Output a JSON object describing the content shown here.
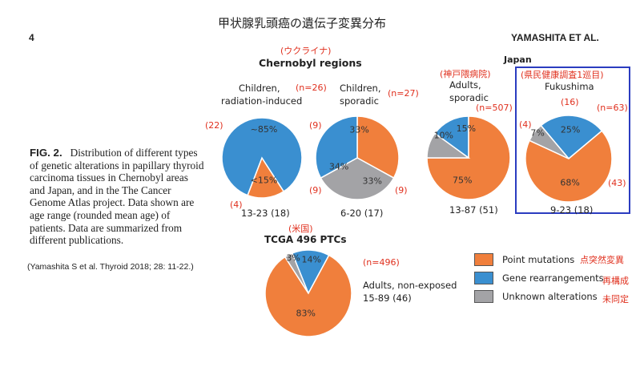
{
  "header": {
    "jp_title": "甲状腺乳頭癌の遺伝子変異分布",
    "page_number": "4",
    "authors": "YAMASHITA ET AL."
  },
  "caption": {
    "fig_label": "FIG. 2.",
    "text": "Distribution of different types of genetic alterations in papillary thyroid carcinoma tissues in Chernobyl areas and Japan, and in the The Cancer Genome Atlas project. Data shown are age range (rounded mean age) of patients. Data are summarized from different publications."
  },
  "citation": "(Yamashita S et al. Thyroid 2018; 28: 11-22.)",
  "groups": {
    "chernobyl": {
      "jp": "(ウクライナ)",
      "title": "Chernobyl regions"
    },
    "japan": {
      "title": "Japan"
    },
    "tcga": {
      "jp": "(米国)",
      "title": "TCGA 496 PTCs"
    }
  },
  "colors": {
    "point": "#f07f3c",
    "rearr": "#3a8fd0",
    "unknown": "#a3a3a6",
    "annotation": "#e0301e",
    "box": "#2b3cc0"
  },
  "chart_data": [
    {
      "type": "pie",
      "id": "radiation",
      "title": "Children, radiation-induced",
      "title_lines": [
        "Children,",
        "radiation-induced"
      ],
      "n_label": "(n=26)",
      "age": "13-23 (18)",
      "slices": [
        {
          "category": "Gene rearrangements",
          "value": 85,
          "label": "~85%",
          "count": "(22)"
        },
        {
          "category": "Point mutations",
          "value": 15,
          "label": "<15%",
          "count": "(4)"
        }
      ]
    },
    {
      "type": "pie",
      "id": "sporadic",
      "title": "Children, sporadic",
      "title_lines": [
        "Children,",
        "sporadic"
      ],
      "n_label": "(n=27)",
      "age": "6-20 (17)",
      "slices": [
        {
          "category": "Gene rearrangements",
          "value": 33,
          "label": "33%",
          "count": "(9)"
        },
        {
          "category": "Point mutations",
          "value": 33,
          "label": "33%",
          "count": "(9)"
        },
        {
          "category": "Unknown alterations",
          "value": 34,
          "label": "34%",
          "count": "(9)"
        }
      ]
    },
    {
      "type": "pie",
      "id": "adults_sporadic",
      "jp": "(神戸隈病院)",
      "title": "Adults, sporadic",
      "title_lines": [
        "Adults,",
        "sporadic"
      ],
      "n_label": "(n=507)",
      "age": "13-87 (51)",
      "slices": [
        {
          "category": "Gene rearrangements",
          "value": 15,
          "label": "15%"
        },
        {
          "category": "Point mutations",
          "value": 75,
          "label": "75%"
        },
        {
          "category": "Unknown alterations",
          "value": 10,
          "label": "10%"
        }
      ]
    },
    {
      "type": "pie",
      "id": "fukushima",
      "jp": "(県民健康調査1巡目)",
      "title": "Fukushima",
      "title_lines": [
        "Fukushima"
      ],
      "n_label": "(n=63)",
      "age": "9-23 (18)",
      "slices": [
        {
          "category": "Gene rearrangements",
          "value": 25,
          "label": "25%",
          "count": "(16)"
        },
        {
          "category": "Point mutations",
          "value": 68,
          "label": "68%",
          "count": "(43)"
        },
        {
          "category": "Unknown alterations",
          "value": 7,
          "label": "7%",
          "count": "(4)"
        }
      ]
    },
    {
      "type": "pie",
      "id": "tcga",
      "title": "TCGA 496 PTCs",
      "title_lines": [
        "Adults, non-exposed"
      ],
      "n_label": "(n=496)",
      "age": "15-89 (46)",
      "slices": [
        {
          "category": "Gene rearrangements",
          "value": 14,
          "label": "14%"
        },
        {
          "category": "Point mutations",
          "value": 83,
          "label": "83%"
        },
        {
          "category": "Unknown alterations",
          "value": 3,
          "label": "3%"
        }
      ]
    }
  ],
  "legend": [
    {
      "key": "point",
      "label": "Point mutations",
      "jp": "点突然変異"
    },
    {
      "key": "rearr",
      "label": "Gene rearrangements",
      "jp": "再構成"
    },
    {
      "key": "unknown",
      "label": "Unknown alterations",
      "jp": "未同定"
    }
  ]
}
